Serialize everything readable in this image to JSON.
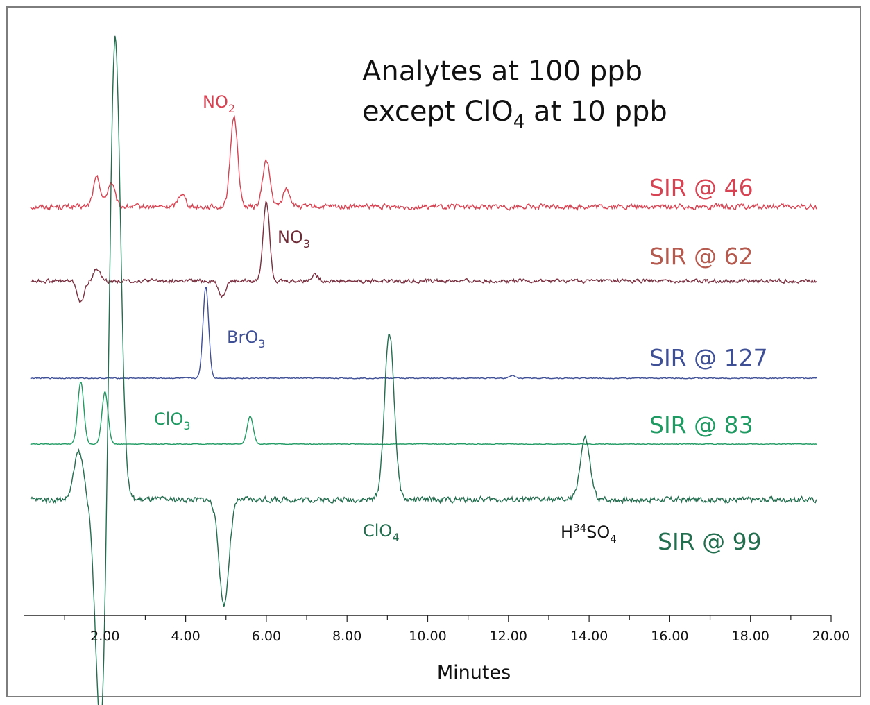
{
  "chart_data": {
    "type": "line",
    "title_lines": [
      "Analytes at 100 ppb",
      "except ClO4 at 10 ppb"
    ],
    "xlabel": "Minutes",
    "xlim": [
      0,
      20
    ],
    "x_ticks": [
      "2.00",
      "4.00",
      "6.00",
      "8.00",
      "10.00",
      "12.00",
      "14.00",
      "16.00",
      "18.00",
      "20.00"
    ],
    "grid": false,
    "colors": {
      "sir46": "#d64453",
      "sir62": "#7a3040",
      "sir127": "#3e4f96",
      "sir83": "#1f9a62",
      "sir99": "#246e50"
    },
    "traces": [
      {
        "name": "SIR @ 46",
        "baseline": 0.0,
        "noise": 0.08,
        "peaks": [
          {
            "label": "NO2",
            "x": 5.2,
            "height": 2.05
          },
          {
            "x": 6.0,
            "height": 1.05
          },
          {
            "x": 1.8,
            "height": 0.65
          },
          {
            "x": 2.15,
            "height": 0.55
          },
          {
            "x": 6.5,
            "height": 0.4
          },
          {
            "x": 3.9,
            "height": 0.3
          }
        ]
      },
      {
        "name": "SIR @ 62",
        "baseline": 0.0,
        "noise": 0.1,
        "peaks": [
          {
            "label": "NO3",
            "x": 6.0,
            "height": 2.9
          },
          {
            "x": 1.4,
            "height": -0.8
          },
          {
            "x": 1.8,
            "height": 0.45
          },
          {
            "x": 4.9,
            "height": -0.55
          },
          {
            "x": 7.2,
            "height": 0.25
          }
        ]
      },
      {
        "name": "SIR @ 127",
        "baseline": 0.0,
        "noise": 0.02,
        "peaks": [
          {
            "label": "BrO3",
            "x": 4.5,
            "height": 2.65
          },
          {
            "x": 12.1,
            "height": 0.08
          }
        ]
      },
      {
        "name": "SIR @ 83",
        "baseline": 0.0,
        "noise": 0.015,
        "peaks": [
          {
            "x": 1.4,
            "height": 1.8
          },
          {
            "label": "ClO3",
            "x": 2.0,
            "height": 1.5
          },
          {
            "x": 5.6,
            "height": 0.8
          }
        ]
      },
      {
        "name": "SIR @ 99",
        "baseline": 0.0,
        "noise": 0.12,
        "peaks": [
          {
            "x": 2.25,
            "height": 13.8
          },
          {
            "x": 1.9,
            "height": -7.0
          },
          {
            "x": 1.35,
            "height": 1.4
          },
          {
            "label": "ClO4",
            "x": 9.05,
            "height": 4.9
          },
          {
            "x": 4.95,
            "height": -3.1
          },
          {
            "label": "H34SO4",
            "x": 13.9,
            "height": 1.8
          }
        ]
      }
    ]
  },
  "labels": {
    "no2": {
      "main": "NO",
      "sub": "2"
    },
    "no3": {
      "main": "NO",
      "sub": "3"
    },
    "bro3": {
      "main": "BrO",
      "sub": "3"
    },
    "clo3": {
      "main": "ClO",
      "sub": "3"
    },
    "clo4": {
      "main": "ClO",
      "sub": "4"
    },
    "h34so4": {
      "pre": "H",
      "sup": "34",
      "main": "SO",
      "sub": "4"
    }
  },
  "title_parts": {
    "line1": "Analytes at 100 ppb",
    "line2_pre": "except ClO",
    "line2_sub": "4",
    "line2_post": " at 10 ppb"
  }
}
